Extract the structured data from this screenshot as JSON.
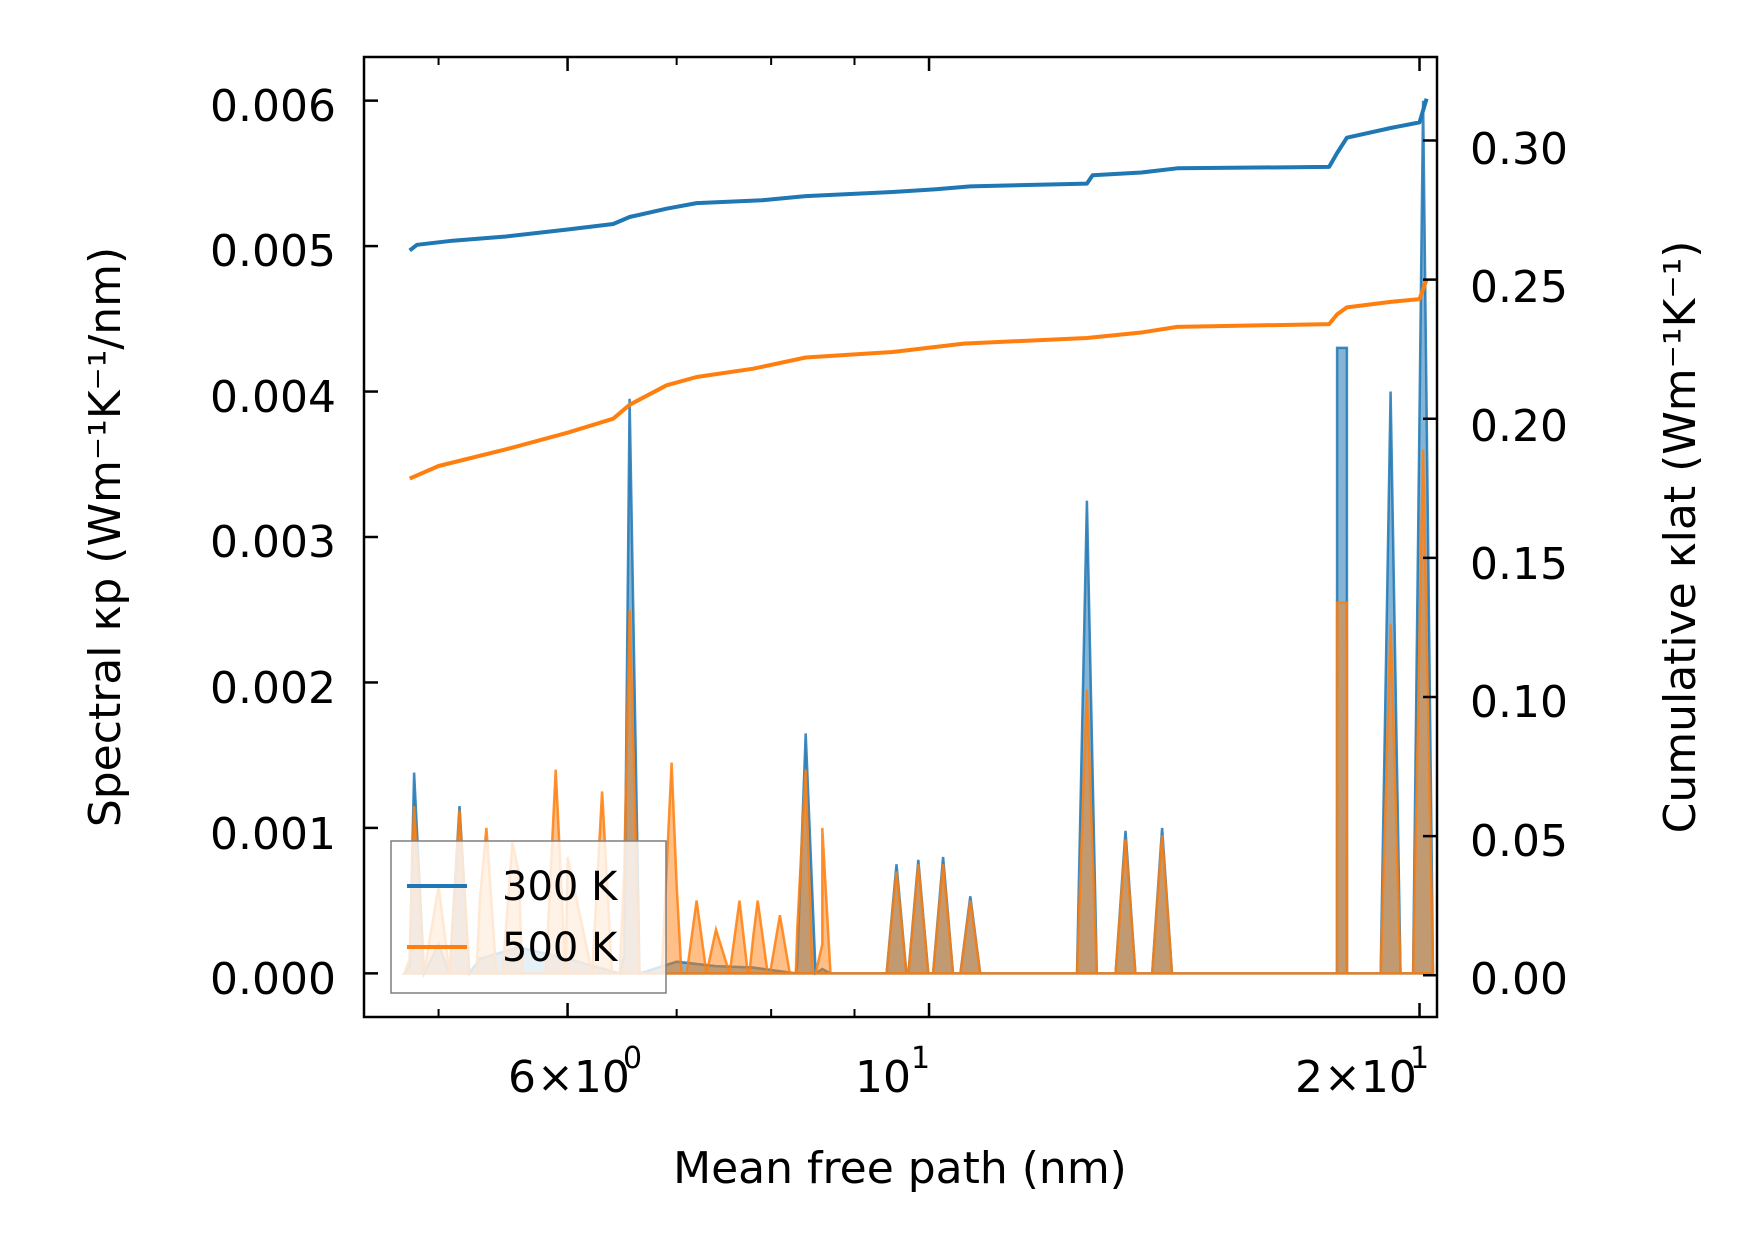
{
  "chart_data": {
    "type": "line",
    "xscale": "log",
    "xlabel": "Mean free path (nm)",
    "ylabel_left": "Spectral κp (Wm⁻¹K⁻¹/nm)",
    "ylabel_right": "Cumulative κlat (Wm⁻¹K⁻¹)",
    "xlim": [
      4.5,
      20.5
    ],
    "ylim_left": [
      -0.0003,
      0.0063
    ],
    "ylim_right": [
      -0.015,
      0.33
    ],
    "x_ticks": [
      {
        "value": 6,
        "mantissa": "6",
        "exponent": "0"
      },
      {
        "value": 10,
        "mantissa": "",
        "exponent": "1"
      },
      {
        "value": 20,
        "mantissa": "2",
        "exponent": "1"
      }
    ],
    "y_ticks_left": [
      "0.000",
      "0.001",
      "0.002",
      "0.003",
      "0.004",
      "0.005",
      "0.006"
    ],
    "y_ticks_right": [
      "0.00",
      "0.05",
      "0.10",
      "0.15",
      "0.20",
      "0.25",
      "0.30"
    ],
    "legend": {
      "position": "lower-left",
      "entries": [
        "300 K",
        "500 K"
      ]
    },
    "colors": {
      "s300": "#1f77b4",
      "s500": "#ff7f0e"
    },
    "spectral": {
      "300 K": {
        "peaks": [
          [
            4.83,
            0.00138
          ],
          [
            5.15,
            0.00115
          ],
          [
            6.55,
            0.00395
          ],
          [
            8.4,
            0.00165
          ],
          [
            9.55,
            0.00075
          ],
          [
            9.85,
            0.00078
          ],
          [
            10.2,
            0.0008
          ],
          [
            10.6,
            0.00053
          ],
          [
            12.5,
            0.00325
          ],
          [
            13.2,
            0.00098
          ],
          [
            13.9,
            0.001
          ],
          [
            17.8,
            0.0043
          ],
          [
            18.05,
            0.0043
          ],
          [
            19.2,
            0.004
          ],
          [
            20.1,
            0.006
          ]
        ],
        "baseline": [
          [
            4.8,
            5e-05
          ],
          [
            5.0,
            0.0002
          ],
          [
            5.3,
            0.0001
          ],
          [
            5.6,
            0.00018
          ],
          [
            6.0,
            0.0001
          ],
          [
            6.5,
            0.00012
          ],
          [
            7.0,
            8e-05
          ],
          [
            7.4,
            5e-05
          ],
          [
            7.8,
            4e-05
          ],
          [
            8.3,
            6e-05
          ],
          [
            8.6,
            3e-05
          ],
          [
            8.7,
            0.0
          ]
        ]
      },
      "500 K": {
        "peaks": [
          [
            4.83,
            0.00115
          ],
          [
            5.15,
            0.00112
          ],
          [
            5.35,
            0.001
          ],
          [
            5.55,
            0.0009
          ],
          [
            5.9,
            0.0014
          ],
          [
            6.3,
            0.00125
          ],
          [
            6.55,
            0.0025
          ],
          [
            6.95,
            0.00145
          ],
          [
            7.2,
            0.0005
          ],
          [
            7.65,
            0.0005
          ],
          [
            7.85,
            0.0005
          ],
          [
            8.1,
            0.0004
          ],
          [
            8.4,
            0.0014
          ],
          [
            8.6,
            0.001
          ],
          [
            9.55,
            0.0007
          ],
          [
            9.85,
            0.00075
          ],
          [
            10.2,
            0.00075
          ],
          [
            10.6,
            0.0005
          ],
          [
            12.5,
            0.00195
          ],
          [
            13.2,
            0.00092
          ],
          [
            13.9,
            0.00095
          ],
          [
            17.8,
            0.00255
          ],
          [
            18.05,
            0.00255
          ],
          [
            19.2,
            0.0024
          ],
          [
            20.1,
            0.0036
          ]
        ],
        "baseline": [
          [
            4.8,
            0.0001
          ],
          [
            5.0,
            0.0006
          ],
          [
            5.3,
            0.0005
          ],
          [
            5.6,
            0.0007
          ],
          [
            6.0,
            0.0008
          ],
          [
            6.5,
            0.0007
          ],
          [
            7.0,
            0.0006
          ],
          [
            7.4,
            0.0003
          ],
          [
            7.8,
            0.00025
          ],
          [
            8.3,
            0.0003
          ],
          [
            8.6,
            0.0002
          ],
          [
            8.7,
            0.0
          ]
        ]
      }
    },
    "cumulative": {
      "300 K": [
        [
          4.8,
          0.2605
        ],
        [
          4.85,
          0.2625
        ],
        [
          5.1,
          0.264
        ],
        [
          5.5,
          0.2655
        ],
        [
          6.0,
          0.268
        ],
        [
          6.4,
          0.27
        ],
        [
          6.55,
          0.2725
        ],
        [
          6.9,
          0.2755
        ],
        [
          7.2,
          0.2775
        ],
        [
          7.9,
          0.2785
        ],
        [
          8.4,
          0.28
        ],
        [
          9.5,
          0.2815
        ],
        [
          10.1,
          0.2825
        ],
        [
          10.6,
          0.2835
        ],
        [
          12.5,
          0.2845
        ],
        [
          12.6,
          0.2875
        ],
        [
          13.5,
          0.2885
        ],
        [
          14.2,
          0.29
        ],
        [
          17.6,
          0.2905
        ],
        [
          17.8,
          0.2955
        ],
        [
          18.05,
          0.301
        ],
        [
          19.2,
          0.3045
        ],
        [
          20.0,
          0.3065
        ],
        [
          20.2,
          0.315
        ]
      ],
      "500 K": [
        [
          4.8,
          0.1785
        ],
        [
          5.0,
          0.183
        ],
        [
          5.5,
          0.189
        ],
        [
          6.0,
          0.195
        ],
        [
          6.4,
          0.2
        ],
        [
          6.55,
          0.205
        ],
        [
          6.9,
          0.212
        ],
        [
          7.2,
          0.215
        ],
        [
          7.8,
          0.218
        ],
        [
          8.4,
          0.222
        ],
        [
          9.5,
          0.224
        ],
        [
          10.5,
          0.227
        ],
        [
          12.5,
          0.229
        ],
        [
          13.5,
          0.231
        ],
        [
          14.2,
          0.233
        ],
        [
          17.6,
          0.234
        ],
        [
          17.8,
          0.2375
        ],
        [
          18.05,
          0.24
        ],
        [
          19.2,
          0.242
        ],
        [
          20.0,
          0.243
        ],
        [
          20.2,
          0.25
        ]
      ]
    }
  }
}
